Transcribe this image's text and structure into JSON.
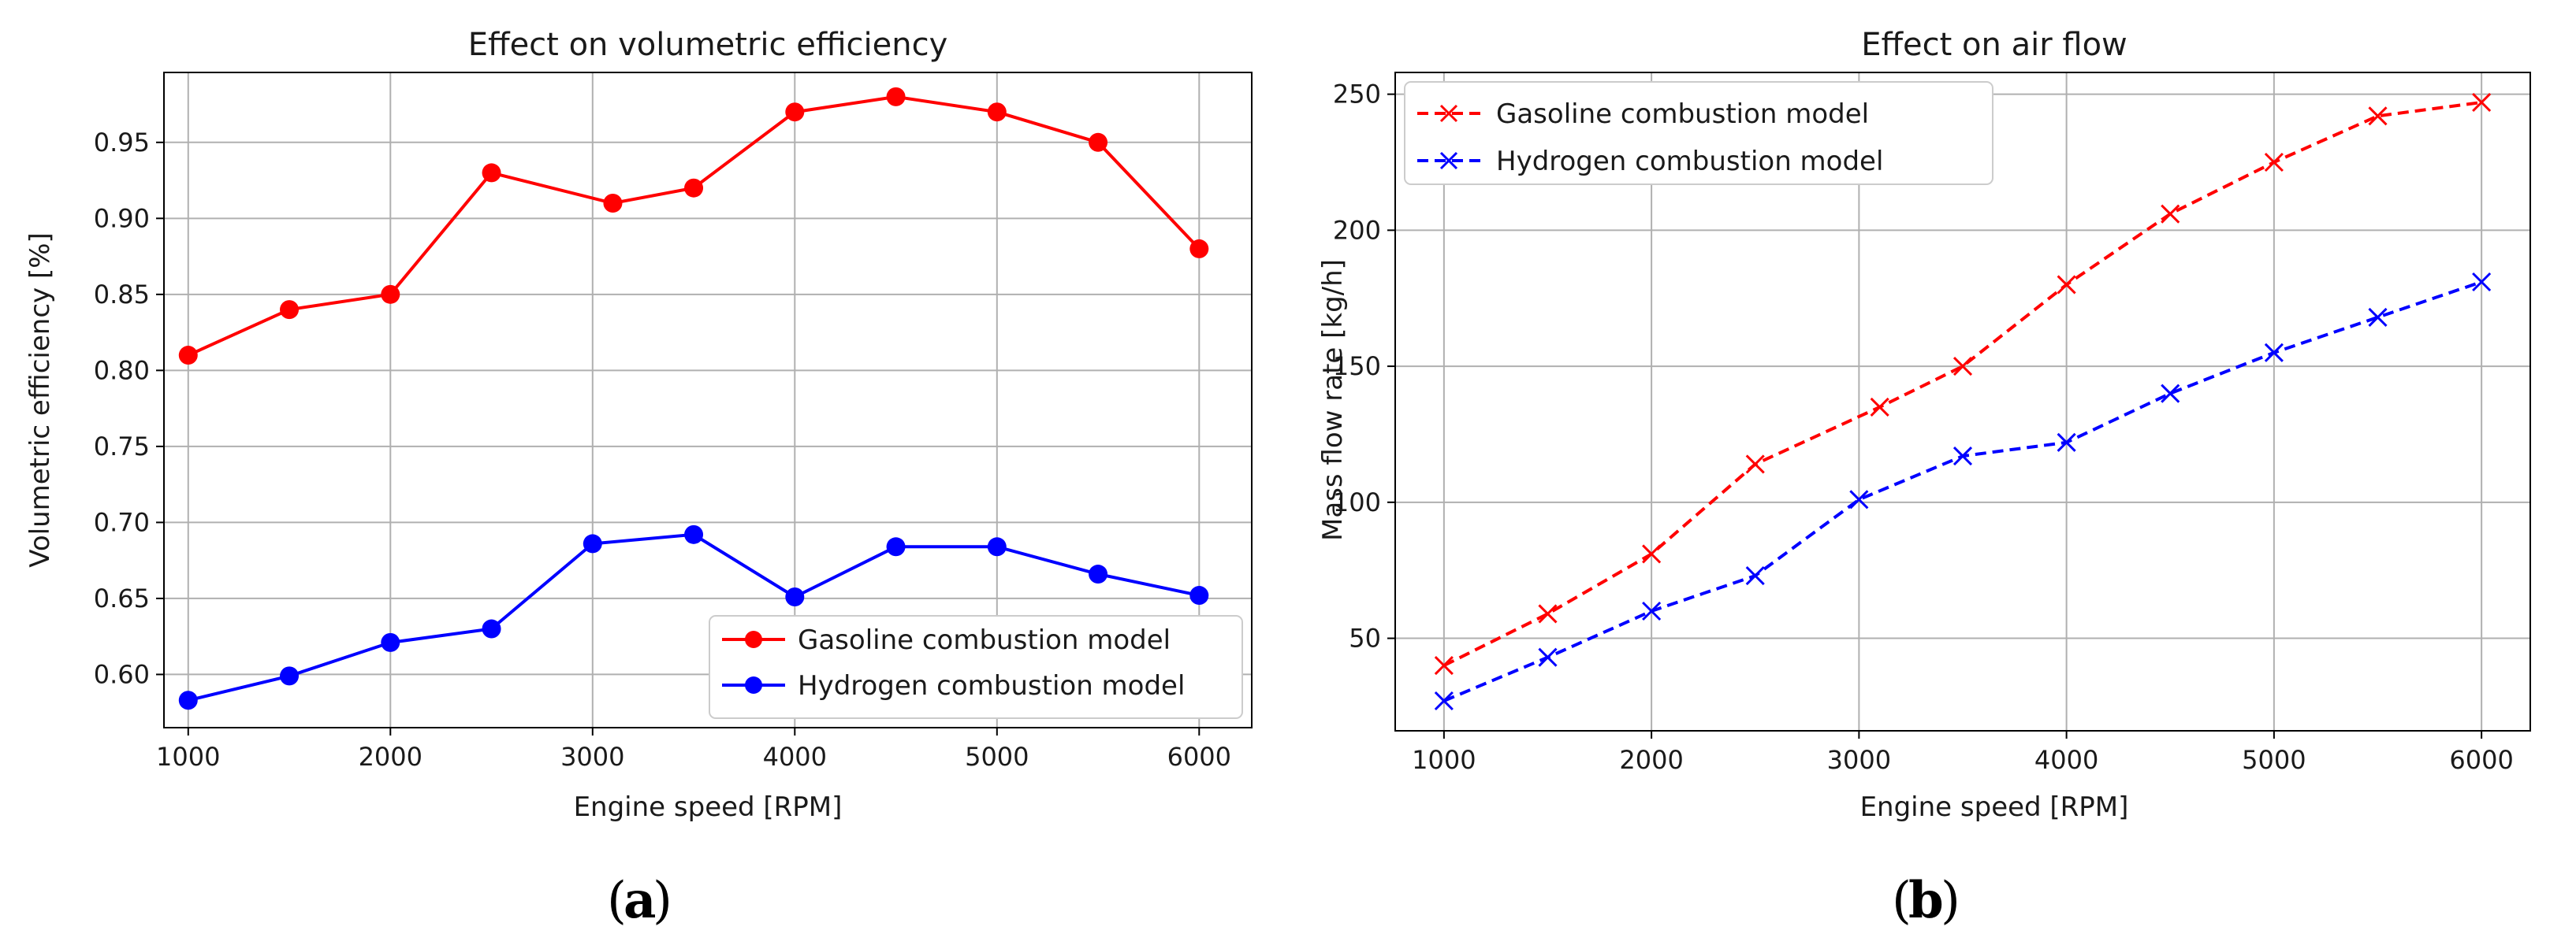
{
  "colors": {
    "gasoline": "#ff0000",
    "hydrogen": "#0000ff"
  },
  "chart_data": [
    {
      "type": "line",
      "title": "Effect on volumetric efficiency",
      "xlabel": "Engine speed [RPM]",
      "ylabel": "Volumetric efficiency [%]",
      "xlim": [
        880,
        6260
      ],
      "ylim": [
        0.565,
        0.996
      ],
      "xticks": [
        1000,
        2000,
        3000,
        4000,
        5000,
        6000
      ],
      "yticks": [
        0.6,
        0.65,
        0.7,
        0.75,
        0.8,
        0.85,
        0.9,
        0.95
      ],
      "x": [
        1000,
        1500,
        2000,
        2500,
        3000,
        3100,
        3500,
        4000,
        4500,
        5000,
        5500,
        6000
      ],
      "series": [
        {
          "name": "Gasoline combustion model",
          "color": "#ff0000",
          "marker": "circle",
          "linestyle": "solid",
          "x": [
            1000,
            1500,
            2000,
            2500,
            3100,
            3500,
            4000,
            4500,
            5000,
            5500,
            6000
          ],
          "values": [
            0.81,
            0.84,
            0.85,
            0.93,
            0.91,
            0.92,
            0.97,
            0.98,
            0.97,
            0.95,
            0.88
          ]
        },
        {
          "name": "Hydrogen combustion model",
          "color": "#0000ff",
          "marker": "circle",
          "linestyle": "solid",
          "x": [
            1000,
            1500,
            2000,
            2500,
            3000,
            3500,
            4000,
            4500,
            5000,
            5500,
            6000
          ],
          "values": [
            0.583,
            0.599,
            0.621,
            0.63,
            0.686,
            0.692,
            0.651,
            0.684,
            0.684,
            0.666,
            0.652
          ]
        }
      ],
      "legend": "lower-right",
      "grid": true,
      "caption": "a"
    },
    {
      "type": "line",
      "title": "Effect on air flow",
      "xlabel": "Engine speed [RPM]",
      "ylabel": "Mass flow rate [kg/h]",
      "xlim": [
        765,
        6235
      ],
      "ylim": [
        16,
        258
      ],
      "xticks": [
        1000,
        2000,
        3000,
        4000,
        5000,
        6000
      ],
      "yticks": [
        50,
        100,
        150,
        200,
        250
      ],
      "series": [
        {
          "name": "Gasoline combustion model",
          "color": "#ff0000",
          "marker": "x",
          "linestyle": "dashed",
          "x": [
            1000,
            1500,
            2000,
            2500,
            3100,
            3500,
            4000,
            4500,
            5000,
            5500,
            6000
          ],
          "values": [
            40,
            59,
            81,
            114,
            135,
            150,
            180,
            206,
            225,
            242,
            247
          ]
        },
        {
          "name": "Hydrogen combustion model",
          "color": "#0000ff",
          "marker": "x",
          "linestyle": "dashed",
          "x": [
            1000,
            1500,
            2000,
            2500,
            3000,
            3500,
            4000,
            4500,
            5000,
            5500,
            6000
          ],
          "values": [
            27,
            43,
            60,
            73,
            101,
            117,
            122,
            140,
            155,
            168,
            181
          ]
        }
      ],
      "legend": "upper-left",
      "grid": true,
      "caption": "b"
    }
  ],
  "captions": {
    "a": "a",
    "b": "b"
  }
}
